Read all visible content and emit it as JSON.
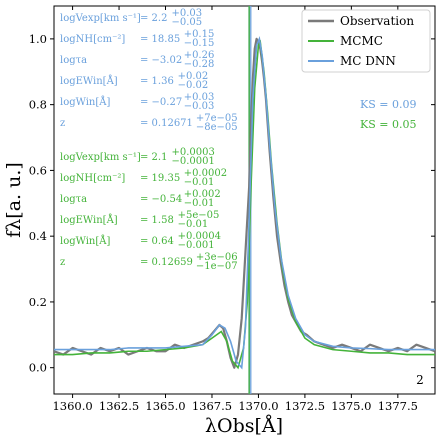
{
  "chart_data": {
    "type": "line",
    "xlabel": "λObs[Å]",
    "ylabel": "fλ[a. u.]",
    "xlim": [
      1359.0,
      1379.5
    ],
    "ylim": [
      -0.08,
      1.1
    ],
    "xticks": [
      "1360.0",
      "1362.5",
      "1365.0",
      "1367.5",
      "1370.0",
      "1372.5",
      "1375.0",
      "1377.5"
    ],
    "yticks": [
      "0.0",
      "0.2",
      "0.4",
      "0.6",
      "0.8",
      "1.0"
    ],
    "panel_label": "2",
    "colors": {
      "observation": "#7a7a7a",
      "mcmc": "#44b33a",
      "mcdnn": "#6aa0dc"
    },
    "legend": {
      "position": "top-right",
      "entries": [
        {
          "key": "observation",
          "label": "Observation"
        },
        {
          "key": "mcmc",
          "label": "MCMC"
        },
        {
          "key": "mcdnn",
          "label": "MC DNN"
        }
      ]
    },
    "ks": {
      "mcdnn": "KS = 0.09",
      "mcmc": "KS = 0.05"
    },
    "params_dnn": [
      {
        "name": "logVexp[km s⁻¹]",
        "value": "= 2.2",
        "sup": "+0.03",
        "sub": "−0.05"
      },
      {
        "name": "logNH[cm⁻²]",
        "value": "= 18.85",
        "sup": "+0.15",
        "sub": "−0.15"
      },
      {
        "name": "logτa",
        "value": "= −3.02",
        "sup": "+0.26",
        "sub": "−0.28"
      },
      {
        "name": "logEWin[Å]",
        "value": "= 1.36",
        "sup": "+0.02",
        "sub": "−0.02"
      },
      {
        "name": "logWin[Å]",
        "value": "= −0.27",
        "sup": "+0.03",
        "sub": "−0.03"
      },
      {
        "name": "z",
        "value": "= 0.12671",
        "sup": "+7e−05",
        "sub": "−8e−05"
      }
    ],
    "params_mcmc": [
      {
        "name": "logVexp[km s⁻¹]",
        "value": "= 2.1",
        "sup": "+0.0003",
        "sub": "−0.0001"
      },
      {
        "name": "logNH[cm⁻²]",
        "value": "= 19.35",
        "sup": "+0.0002",
        "sub": "−0.01"
      },
      {
        "name": "logτa",
        "value": "= −0.54",
        "sup": "+0.002",
        "sub": "−0.01"
      },
      {
        "name": "logEWin[Å]",
        "value": "= 1.58",
        "sup": "+5e−05",
        "sub": "−0.01"
      },
      {
        "name": "logWin[Å]",
        "value": "= 0.64",
        "sup": "+0.0004",
        "sub": "−0.001"
      },
      {
        "name": "z",
        "value": "= 0.12659",
        "sup": "+3e−06",
        "sub": "−1e−07"
      }
    ],
    "vertical_lines": {
      "dnn": {
        "center": 1369.55,
        "band": [
          1369.45,
          1369.65
        ]
      },
      "mcmc": {
        "center": 1369.5
      }
    },
    "series": [
      {
        "key": "observation",
        "name": "Observation",
        "x": [
          1359.0,
          1359.5,
          1360.0,
          1360.5,
          1361.0,
          1361.5,
          1362.0,
          1362.5,
          1363.0,
          1363.5,
          1364.0,
          1364.5,
          1365.0,
          1365.5,
          1366.0,
          1366.5,
          1367.0,
          1367.3,
          1367.6,
          1367.9,
          1368.1,
          1368.3,
          1368.5,
          1368.7,
          1368.9,
          1369.1,
          1369.3,
          1369.5,
          1369.6,
          1369.7,
          1369.8,
          1369.9,
          1370.0,
          1370.1,
          1370.2,
          1370.3,
          1370.4,
          1370.5,
          1370.6,
          1370.8,
          1371.0,
          1371.2,
          1371.4,
          1371.6,
          1371.8,
          1372.0,
          1372.3,
          1372.6,
          1373.0,
          1373.5,
          1374.0,
          1374.5,
          1375.0,
          1375.5,
          1376.0,
          1376.5,
          1377.0,
          1377.5,
          1378.0,
          1378.5,
          1379.0,
          1379.5
        ],
        "y": [
          0.05,
          0.04,
          0.06,
          0.05,
          0.04,
          0.06,
          0.05,
          0.06,
          0.04,
          0.05,
          0.06,
          0.05,
          0.05,
          0.07,
          0.06,
          0.07,
          0.08,
          0.09,
          0.11,
          0.13,
          0.12,
          0.08,
          0.03,
          0.0,
          0.04,
          0.15,
          0.35,
          0.55,
          0.75,
          0.88,
          0.97,
          1.0,
          0.99,
          0.97,
          0.93,
          0.88,
          0.82,
          0.74,
          0.66,
          0.52,
          0.4,
          0.32,
          0.25,
          0.2,
          0.16,
          0.14,
          0.11,
          0.1,
          0.08,
          0.07,
          0.06,
          0.07,
          0.06,
          0.05,
          0.07,
          0.06,
          0.05,
          0.06,
          0.05,
          0.07,
          0.06,
          0.05
        ]
      },
      {
        "key": "mcmc",
        "name": "MCMC",
        "x": [
          1359.0,
          1360.0,
          1361.0,
          1362.0,
          1363.0,
          1364.0,
          1365.0,
          1366.0,
          1367.0,
          1367.5,
          1368.0,
          1368.3,
          1368.6,
          1368.9,
          1369.2,
          1369.4,
          1369.6,
          1369.8,
          1370.0,
          1370.1,
          1370.3,
          1370.5,
          1370.7,
          1371.0,
          1371.3,
          1371.6,
          1372.0,
          1372.5,
          1373.0,
          1374.0,
          1375.0,
          1376.0,
          1377.0,
          1378.0,
          1379.5
        ],
        "y": [
          0.04,
          0.04,
          0.045,
          0.045,
          0.05,
          0.05,
          0.055,
          0.06,
          0.07,
          0.09,
          0.11,
          0.08,
          0.02,
          0.0,
          0.06,
          0.2,
          0.55,
          0.85,
          0.98,
          0.99,
          0.9,
          0.77,
          0.62,
          0.44,
          0.3,
          0.21,
          0.14,
          0.09,
          0.07,
          0.055,
          0.05,
          0.045,
          0.045,
          0.04,
          0.04
        ]
      },
      {
        "key": "mcdnn",
        "name": "MC DNN",
        "x": [
          1359.0,
          1360.0,
          1361.0,
          1362.0,
          1363.0,
          1364.0,
          1365.0,
          1366.0,
          1367.0,
          1367.5,
          1367.9,
          1368.2,
          1368.5,
          1368.8,
          1369.1,
          1369.3,
          1369.5,
          1369.7,
          1369.9,
          1370.05,
          1370.2,
          1370.4,
          1370.6,
          1370.9,
          1371.2,
          1371.6,
          1372.0,
          1372.5,
          1373.0,
          1374.0,
          1375.0,
          1376.0,
          1377.0,
          1378.0,
          1379.5
        ],
        "y": [
          0.055,
          0.055,
          0.055,
          0.055,
          0.06,
          0.06,
          0.06,
          0.065,
          0.07,
          0.1,
          0.13,
          0.12,
          0.08,
          0.02,
          0.0,
          0.12,
          0.45,
          0.82,
          0.98,
          1.0,
          0.95,
          0.83,
          0.68,
          0.48,
          0.34,
          0.22,
          0.15,
          0.1,
          0.08,
          0.065,
          0.06,
          0.058,
          0.055,
          0.055,
          0.055
        ]
      }
    ]
  }
}
